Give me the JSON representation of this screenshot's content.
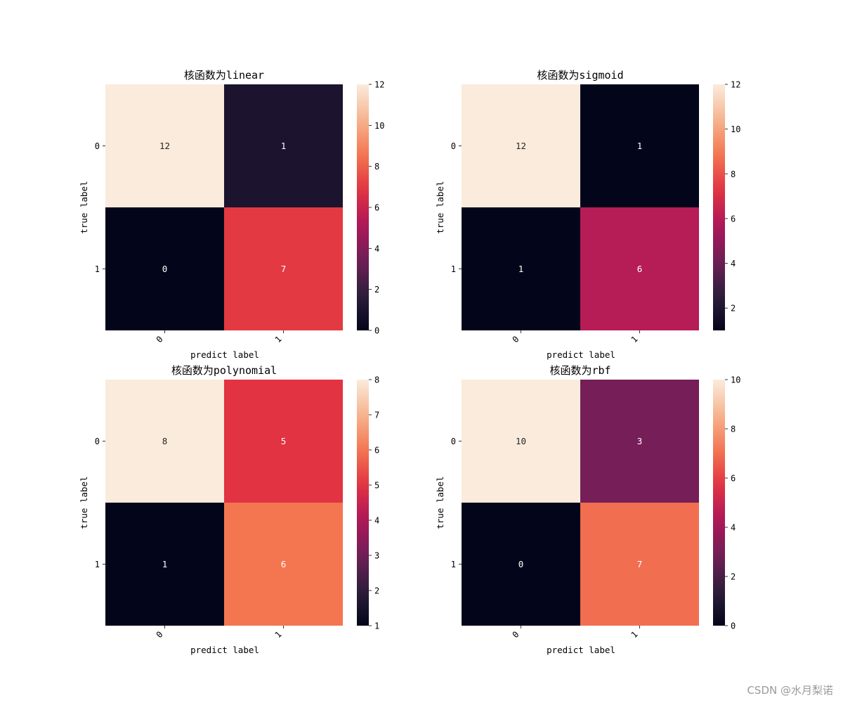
{
  "chart_data": [
    {
      "type": "heatmap",
      "title": "核函数为linear",
      "xlabel": "predict label",
      "ylabel": "true label",
      "x_tick_labels": [
        "0",
        "1"
      ],
      "y_tick_labels": [
        "0",
        "1"
      ],
      "matrix": [
        [
          12,
          1
        ],
        [
          0,
          7
        ]
      ],
      "colorbar_range": [
        0,
        12
      ],
      "colorbar_ticks": [
        0,
        2,
        4,
        6,
        8,
        10,
        12
      ],
      "colormap": "rocket"
    },
    {
      "type": "heatmap",
      "title": "核函数为sigmoid",
      "xlabel": "predict label",
      "ylabel": "true label",
      "x_tick_labels": [
        "0",
        "1"
      ],
      "y_tick_labels": [
        "0",
        "1"
      ],
      "matrix": [
        [
          12,
          1
        ],
        [
          1,
          6
        ]
      ],
      "colorbar_range": [
        1,
        12
      ],
      "colorbar_ticks": [
        2,
        4,
        6,
        8,
        10,
        12
      ],
      "colormap": "rocket"
    },
    {
      "type": "heatmap",
      "title": "核函数为polynomial",
      "xlabel": "predict label",
      "ylabel": "true label",
      "x_tick_labels": [
        "0",
        "1"
      ],
      "y_tick_labels": [
        "0",
        "1"
      ],
      "matrix": [
        [
          8,
          5
        ],
        [
          1,
          6
        ]
      ],
      "colorbar_range": [
        1,
        8
      ],
      "colorbar_ticks": [
        1,
        2,
        3,
        4,
        5,
        6,
        7,
        8
      ],
      "colormap": "rocket"
    },
    {
      "type": "heatmap",
      "title": "核函数为rbf",
      "xlabel": "predict label",
      "ylabel": "true label",
      "x_tick_labels": [
        "0",
        "1"
      ],
      "y_tick_labels": [
        "0",
        "1"
      ],
      "matrix": [
        [
          10,
          3
        ],
        [
          0,
          7
        ]
      ],
      "colorbar_range": [
        0,
        10
      ],
      "colorbar_ticks": [
        0,
        2,
        4,
        6,
        8,
        10
      ],
      "colormap": "rocket"
    }
  ],
  "colors": {
    "colormap_stops": [
      "#03051a",
      "#2e1e3c",
      "#701f57",
      "#ad1759",
      "#e13342",
      "#f37651",
      "#f6b48f",
      "#faebdd"
    ],
    "light_text": "#ffffff",
    "dark_text": "#262626"
  },
  "watermark": "CSDN @水月梨诺"
}
